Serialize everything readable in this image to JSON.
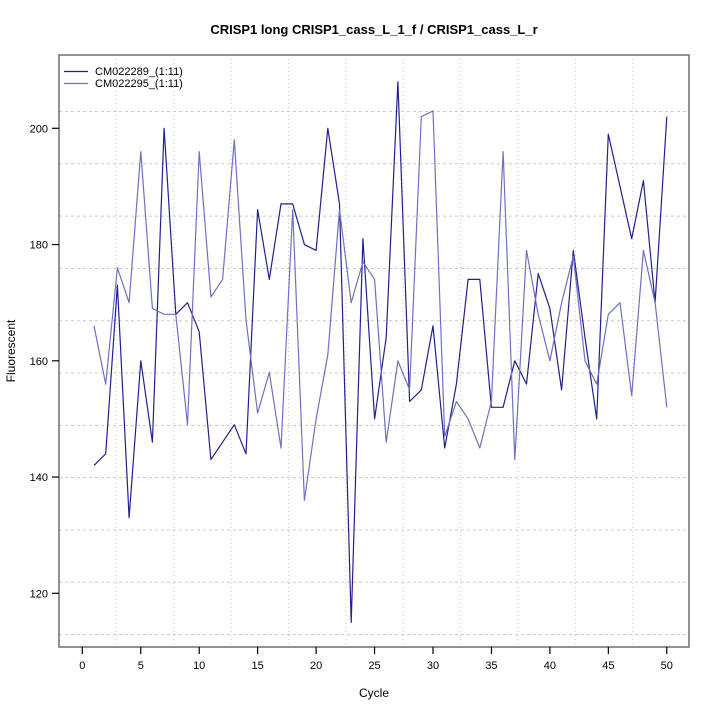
{
  "window": {
    "background": "#ffffff"
  },
  "chart_data": {
    "type": "line",
    "title": "CRISP1 long CRISP1_cass_L_1_f / CRISP1_cass_L_r",
    "xlabel": "Cycle",
    "ylabel": "Fluorescent",
    "xlim": [
      -2,
      52
    ],
    "ylim": [
      111,
      213
    ],
    "x_ticks": [
      0,
      5,
      10,
      15,
      20,
      25,
      30,
      35,
      40,
      45,
      50
    ],
    "y_ticks": [
      120,
      140,
      160,
      180,
      200
    ],
    "grid": {
      "style": "dotted",
      "color": "#c8c8c8",
      "x_values": [
        2.91,
        7.82,
        12.73,
        17.64,
        22.55,
        27.45,
        32.36,
        37.27,
        42.18,
        47.09
      ],
      "y_values": [
        202.9,
        193.9,
        184.9,
        175.9,
        166.9,
        157.9,
        148.9,
        139.9,
        130.9,
        121.9,
        112.9
      ]
    },
    "legend_position": "top-left",
    "x": [
      1,
      2,
      3,
      4,
      5,
      6,
      7,
      8,
      9,
      10,
      11,
      12,
      13,
      14,
      15,
      16,
      17,
      18,
      19,
      20,
      21,
      22,
      23,
      24,
      25,
      26,
      27,
      28,
      29,
      30,
      31,
      32,
      33,
      34,
      35,
      36,
      37,
      38,
      39,
      40,
      41,
      42,
      43,
      44,
      45,
      46,
      47,
      48,
      49,
      50
    ],
    "series": [
      {
        "name": "CM022289_(1:11)",
        "color": "#20208f",
        "values": [
          142,
          144,
          173,
          133,
          160,
          146,
          200,
          168,
          170,
          165,
          143,
          146,
          149,
          144,
          186,
          174,
          187,
          187,
          180,
          179,
          200,
          187,
          115,
          181,
          150,
          164,
          208,
          153,
          155,
          166,
          145,
          156,
          174,
          174,
          152,
          152,
          160,
          156,
          175,
          169,
          155,
          179,
          164,
          150,
          199,
          190,
          181,
          191,
          170,
          202
        ]
      },
      {
        "name": "CM022295_(1:11)",
        "color": "#6f6fc4",
        "values": [
          166,
          156,
          176,
          170,
          196,
          169,
          168,
          168,
          149,
          196,
          171,
          174,
          198,
          167,
          151,
          158,
          145,
          186,
          136,
          150,
          161,
          186,
          170,
          177,
          174,
          146,
          160,
          155,
          202,
          203,
          147,
          153,
          150,
          145,
          153,
          196,
          143,
          179,
          168,
          160,
          170,
          178,
          160,
          156,
          168,
          170,
          154,
          179,
          170,
          152
        ]
      }
    ]
  },
  "layout_text": {
    "title": "CRISP1 long CRISP1_cass_L_1_f / CRISP1_cass_L_r",
    "xlabel": "Cycle",
    "ylabel": "Fluorescent",
    "legend": [
      "CM022289_(1:11)",
      "CM022295_(1:11)"
    ]
  }
}
